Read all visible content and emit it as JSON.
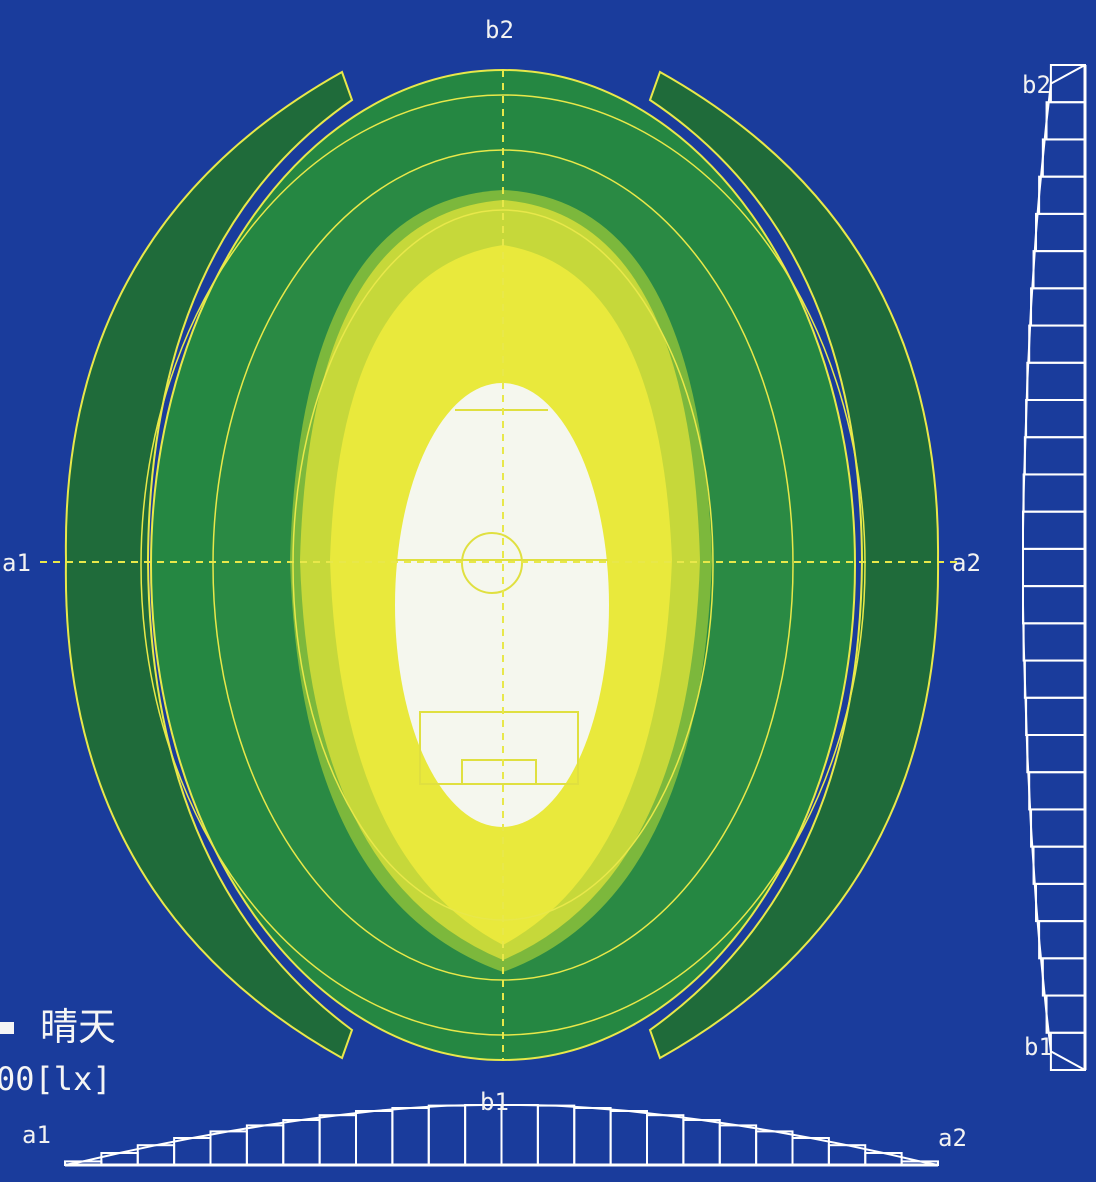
{
  "labels": {
    "top_b2": "b2",
    "left_a1": "a1",
    "right_a2": "a2",
    "side_b2": "b2",
    "side_b1": "b1",
    "bottom_b1": "b1",
    "bottom_a1": "a1",
    "bottom_a2": "a2"
  },
  "caption": {
    "line1": "晴天",
    "line2": "00[lx]"
  },
  "colors": {
    "background": "#1a3c9c",
    "zone_outer": "#1f6b3a",
    "zone_2": "#2a8a44",
    "zone_3": "#5aa63a",
    "zone_4": "#b8d23a",
    "zone_5": "#e6e83a",
    "zone_center": "#f5f7ee",
    "contour_line": "#e8e84a",
    "profile_line": "#ffffff"
  },
  "profiles": {
    "horizontal_a1_a2": [
      0.06,
      0.2,
      0.33,
      0.45,
      0.56,
      0.66,
      0.75,
      0.83,
      0.9,
      0.95,
      0.99,
      1.0,
      1.0,
      0.99,
      0.95,
      0.9,
      0.83,
      0.75,
      0.66,
      0.56,
      0.45,
      0.33,
      0.2,
      0.06
    ],
    "vertical_b2_b1": [
      0.55,
      0.62,
      0.68,
      0.74,
      0.79,
      0.83,
      0.87,
      0.9,
      0.93,
      0.95,
      0.97,
      0.99,
      1.0,
      1.0,
      1.0,
      0.99,
      0.97,
      0.95,
      0.93,
      0.9,
      0.87,
      0.83,
      0.79,
      0.74,
      0.68,
      0.62,
      0.55
    ]
  }
}
